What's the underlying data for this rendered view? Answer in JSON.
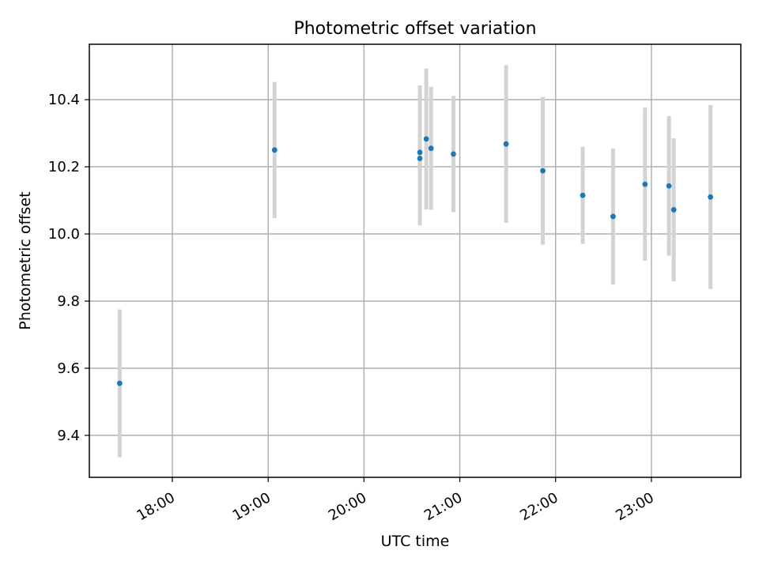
{
  "chart_data": {
    "type": "scatter",
    "title": "Photometric offset variation",
    "xlabel": "UTC time",
    "ylabel": "Photometric offset",
    "x_tick_labels": [
      "18:00",
      "19:00",
      "20:00",
      "21:00",
      "22:00",
      "23:00"
    ],
    "x_ticks_time": [
      "18:00",
      "19:00",
      "20:00",
      "21:00",
      "22:00",
      "23:00"
    ],
    "y_tick_labels": [
      "9.4",
      "9.6",
      "9.8",
      "10.0",
      "10.2",
      "10.4"
    ],
    "y_ticks": [
      9.4,
      9.6,
      9.8,
      10.0,
      10.2,
      10.4
    ],
    "xlim": [
      "17:08",
      "23:56"
    ],
    "ylim": [
      9.275,
      10.565
    ],
    "grid": true,
    "marker_color": "#1f77b4",
    "errorbar_color": "#d3d3d3",
    "series": [
      {
        "points": [
          {
            "x": "17:27",
            "y": 9.555,
            "err": 0.22
          },
          {
            "x": "19:04",
            "y": 10.25,
            "err": 0.203
          },
          {
            "x": "20:35",
            "y": 10.243,
            "err": 0.2
          },
          {
            "x": "20:35",
            "y": 10.225,
            "err": 0.2
          },
          {
            "x": "20:39",
            "y": 10.283,
            "err": 0.21
          },
          {
            "x": "20:42",
            "y": 10.255,
            "err": 0.183
          },
          {
            "x": "20:56",
            "y": 10.238,
            "err": 0.173
          },
          {
            "x": "21:29",
            "y": 10.268,
            "err": 0.235
          },
          {
            "x": "21:52",
            "y": 10.188,
            "err": 0.22
          },
          {
            "x": "22:17",
            "y": 10.115,
            "err": 0.145
          },
          {
            "x": "22:36",
            "y": 10.052,
            "err": 0.203
          },
          {
            "x": "22:56",
            "y": 10.148,
            "err": 0.228
          },
          {
            "x": "23:11",
            "y": 10.143,
            "err": 0.208
          },
          {
            "x": "23:14",
            "y": 10.072,
            "err": 0.213
          },
          {
            "x": "23:37",
            "y": 10.11,
            "err": 0.274
          }
        ]
      }
    ]
  }
}
